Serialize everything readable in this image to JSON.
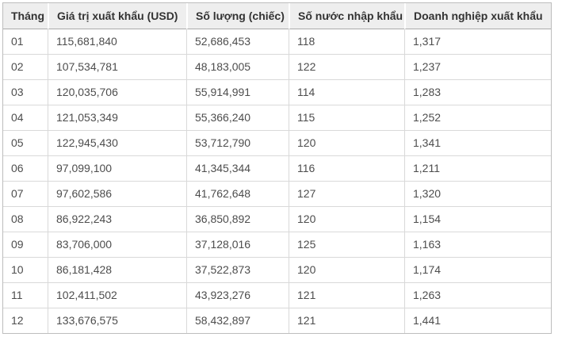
{
  "chart_data": {
    "type": "table",
    "columns": [
      "Tháng",
      "Giá trị xuất khẩu (USD)",
      "Số lượng (chiếc)",
      "Số nước nhập khẩu",
      "Doanh nghiệp xuất khẩu"
    ],
    "rows": [
      [
        "01",
        "115,681,840",
        "52,686,453",
        "118",
        "1,317"
      ],
      [
        "02",
        "107,534,781",
        "48,183,005",
        "122",
        "1,237"
      ],
      [
        "03",
        "120,035,706",
        "55,914,991",
        "114",
        "1,283"
      ],
      [
        "04",
        "121,053,349",
        "55,366,240",
        "115",
        "1,252"
      ],
      [
        "05",
        "122,945,430",
        "53,712,790",
        "120",
        "1,341"
      ],
      [
        "06",
        "97,099,100",
        "41,345,344",
        "116",
        "1,211"
      ],
      [
        "07",
        "97,602,586",
        "41,762,648",
        "127",
        "1,320"
      ],
      [
        "08",
        "86,922,243",
        "36,850,892",
        "120",
        "1,154"
      ],
      [
        "09",
        "83,706,000",
        "37,128,016",
        "125",
        "1,163"
      ],
      [
        "10",
        "86,181,428",
        "37,522,873",
        "120",
        "1,174"
      ],
      [
        "11",
        "102,411,502",
        "43,923,276",
        "121",
        "1,263"
      ],
      [
        "12",
        "133,676,575",
        "58,432,897",
        "121",
        "1,441"
      ]
    ]
  },
  "colors": {
    "header_bg": "#eeeeee",
    "header_text": "#333333",
    "body_text": "#4d4d4d",
    "outer_border": "#bdbdbd",
    "inner_border": "#d9d9d9",
    "header_bottom_border": "#aaaaaa",
    "header_cell_gap": "#ffffff"
  }
}
